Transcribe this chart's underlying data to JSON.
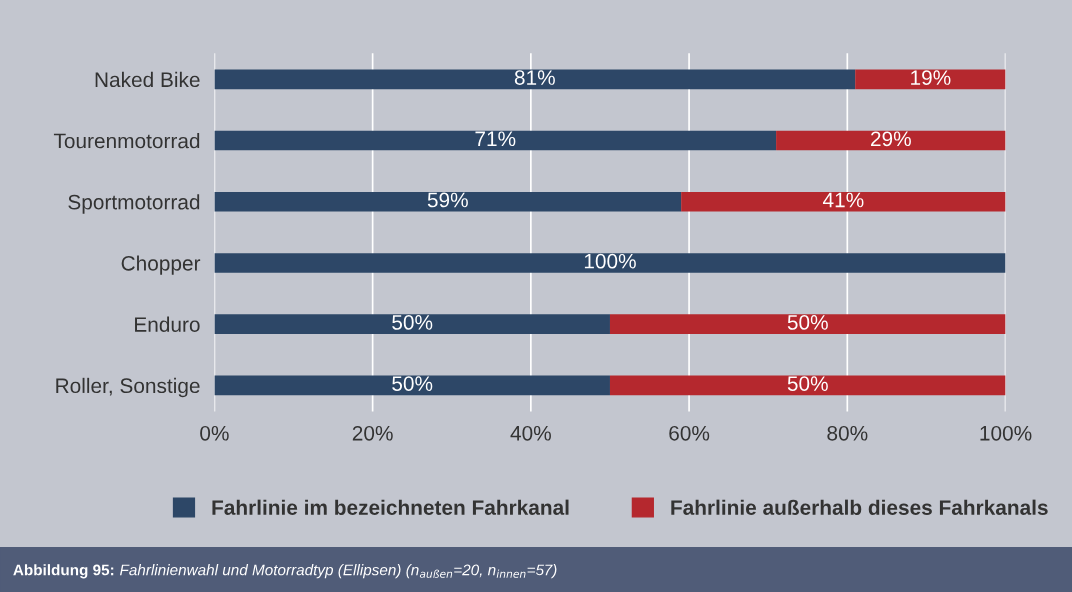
{
  "chart_data": {
    "type": "bar",
    "orientation": "horizontal",
    "stacked": true,
    "categories": [
      "Naked Bike",
      "Tourenmotorrad",
      "Sportmotorrad",
      "Chopper",
      "Enduro",
      "Roller, Sonstige"
    ],
    "series": [
      {
        "name": "Fahrlinie im bezeichneten Fahrkanal",
        "color": "#2d4767",
        "values": [
          81,
          71,
          59,
          100,
          50,
          50
        ],
        "value_labels": [
          "81%",
          "71%",
          "59%",
          "100%",
          "50%",
          "50%"
        ]
      },
      {
        "name": "Fahrlinie außerhalb dieses Fahrkanals",
        "color": "#b5282e",
        "values": [
          19,
          29,
          41,
          0,
          50,
          50
        ],
        "value_labels": [
          "19%",
          "29%",
          "41%",
          null,
          "50%",
          "50%"
        ]
      }
    ],
    "xlim": [
      0,
      100
    ],
    "xticks": [
      {
        "value": 0,
        "label": "0%"
      },
      {
        "value": 20,
        "label": "20%"
      },
      {
        "value": 40,
        "label": "40%"
      },
      {
        "value": 60,
        "label": "60%"
      },
      {
        "value": 80,
        "label": "80%"
      },
      {
        "value": 100,
        "label": "100%"
      }
    ],
    "grid": "x",
    "legend": "bottom",
    "annotations": [
      "Abbildung 95:",
      "Fahrlinienwahl und Motorradtyp (Ellipsen) (n$_{außen}$=20, n$_{innen}$=57)"
    ]
  }
}
